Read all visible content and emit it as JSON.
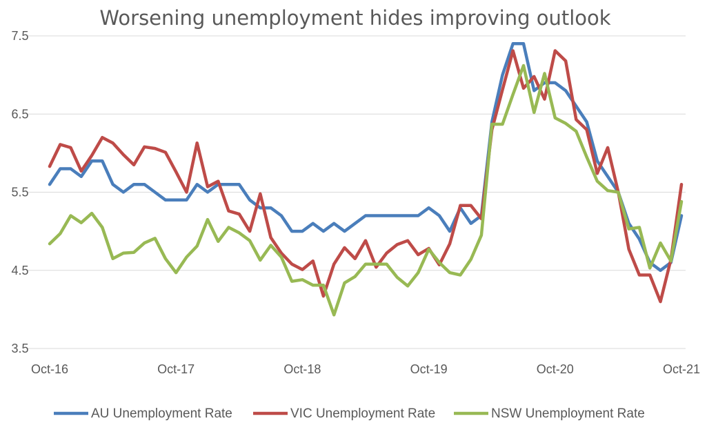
{
  "chart_data": {
    "type": "line",
    "title": "Worsening unemployment hides improving outlook",
    "xlabel": "",
    "ylabel": "",
    "ylim": [
      3.5,
      7.5
    ],
    "yticks": [
      "3.5",
      "4.5",
      "5.5",
      "6.5",
      "7.5"
    ],
    "xticks": [
      "Oct-16",
      "Oct-17",
      "Oct-18",
      "Oct-19",
      "Oct-20",
      "Oct-21"
    ],
    "x_start": "Oct-16",
    "grid": true,
    "legend_position": "bottom",
    "series": [
      {
        "name": "AU Unemployment Rate",
        "color": "#4a7ebb",
        "values": [
          5.6,
          5.8,
          5.8,
          5.7,
          5.9,
          5.9,
          5.6,
          5.5,
          5.6,
          5.6,
          5.5,
          5.4,
          5.4,
          5.4,
          5.6,
          5.5,
          5.6,
          5.6,
          5.6,
          5.4,
          5.3,
          5.3,
          5.2,
          5.0,
          5.0,
          5.1,
          5.0,
          5.1,
          5.0,
          5.1,
          5.2,
          5.2,
          5.2,
          5.2,
          5.2,
          5.2,
          5.3,
          5.2,
          5.0,
          5.3,
          5.1,
          5.2,
          6.4,
          7.0,
          7.4,
          7.4,
          6.8,
          6.9,
          6.9,
          6.8,
          6.6,
          6.4,
          5.9,
          5.7,
          5.5,
          5.1,
          4.9,
          4.6,
          4.5,
          4.6,
          5.2
        ]
      },
      {
        "name": "VIC Unemployment Rate",
        "color": "#be4b48",
        "values": [
          5.83,
          6.11,
          6.07,
          5.77,
          5.97,
          6.2,
          6.13,
          5.98,
          5.85,
          6.08,
          6.06,
          6.01,
          5.76,
          5.5,
          6.13,
          5.57,
          5.64,
          5.26,
          5.22,
          5.0,
          5.48,
          4.92,
          4.72,
          4.58,
          4.51,
          4.62,
          4.17,
          4.58,
          4.79,
          4.65,
          4.88,
          4.54,
          4.72,
          4.83,
          4.88,
          4.7,
          4.78,
          4.57,
          4.84,
          5.33,
          5.33,
          5.16,
          6.3,
          6.81,
          7.31,
          6.83,
          6.98,
          6.69,
          7.31,
          7.18,
          6.43,
          6.3,
          5.74,
          6.07,
          5.5,
          4.77,
          4.44,
          4.44,
          4.1,
          4.64,
          5.6
        ]
      },
      {
        "name": "NSW Unemployment Rate",
        "color": "#98b954",
        "values": [
          4.84,
          4.97,
          5.2,
          5.11,
          5.23,
          5.05,
          4.65,
          4.72,
          4.73,
          4.85,
          4.91,
          4.65,
          4.47,
          4.67,
          4.81,
          5.15,
          4.87,
          5.05,
          4.98,
          4.88,
          4.63,
          4.82,
          4.67,
          4.36,
          4.38,
          4.31,
          4.31,
          3.93,
          4.34,
          4.42,
          4.58,
          4.58,
          4.58,
          4.41,
          4.3,
          4.47,
          4.77,
          4.6,
          4.47,
          4.44,
          4.64,
          4.95,
          6.37,
          6.37,
          6.75,
          7.12,
          6.52,
          7.02,
          6.45,
          6.38,
          6.28,
          5.95,
          5.64,
          5.52,
          5.5,
          5.03,
          5.05,
          4.53,
          4.85,
          4.62,
          5.38
        ]
      }
    ]
  }
}
